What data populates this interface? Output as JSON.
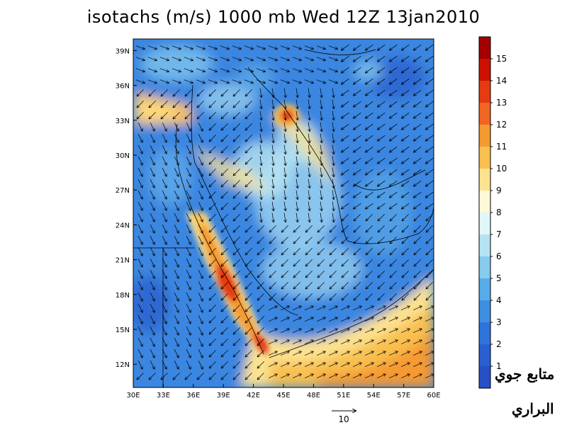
{
  "title": "isotachs (m/s) 1000 mb Wed 12Z 13jan2010",
  "map": {
    "lon_range": [
      30,
      60
    ],
    "lat_range": [
      10,
      40
    ],
    "lon_ticks": [
      "30E",
      "33E",
      "36E",
      "39E",
      "42E",
      "45E",
      "48E",
      "51E",
      "54E",
      "57E",
      "60E"
    ],
    "lat_ticks": [
      "39N",
      "36N",
      "33N",
      "30N",
      "27N",
      "24N",
      "21N",
      "18N",
      "15N",
      "12N"
    ],
    "field": "wind speed isotachs with wind vectors",
    "jet_cores": [
      {
        "region": "Red Sea (central)",
        "max_speed": 14
      },
      {
        "region": "Red Sea (southern, Bab-el-Mandeb)",
        "max_speed": 14
      },
      {
        "region": "Syria / Iraq border",
        "max_speed": 14
      },
      {
        "region": "Gulf of Aden / Arabian Sea",
        "max_speed": 11
      }
    ]
  },
  "colorbar": {
    "labels": [
      "15",
      "14",
      "13",
      "12",
      "11",
      "10",
      "9",
      "8",
      "7",
      "6",
      "5",
      "4",
      "3",
      "2",
      "1"
    ],
    "colors": [
      "#a50000",
      "#cc1100",
      "#e63a10",
      "#f26522",
      "#f59a30",
      "#f8c050",
      "#fde390",
      "#fdf8d8",
      "#e0f6f9",
      "#b5e3f3",
      "#86cbef",
      "#58acea",
      "#3c8fe2",
      "#2f74dc",
      "#2a5fd2",
      "#2550c8"
    ]
  },
  "vector_reference": {
    "label": "10"
  },
  "watermark": {
    "line1": "متابع جوي",
    "line2": "البراري"
  }
}
